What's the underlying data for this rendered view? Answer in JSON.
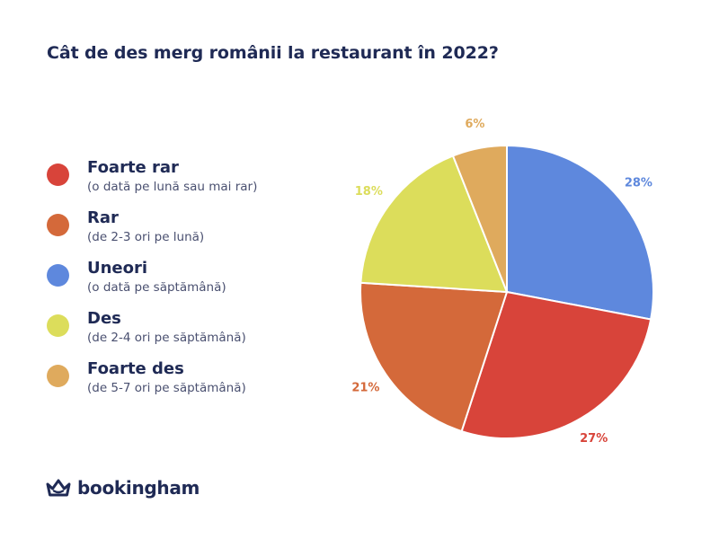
{
  "chart_data": {
    "type": "pie",
    "title": "Cât de des merg românii la restaurant în 2022?",
    "start_angle_deg": 0,
    "direction": "clockwise",
    "slices": [
      {
        "category": "Uneori",
        "description": "(o dată pe săptămână)",
        "value": 28,
        "label": "28%",
        "color": "#5e88dd"
      },
      {
        "category": "Foarte rar",
        "description": "(o dată pe lună sau mai rar)",
        "value": 27,
        "label": "27%",
        "color": "#d8443a"
      },
      {
        "category": "Rar",
        "description": "(de 2-3 ori pe lună)",
        "value": 21,
        "label": "21%",
        "color": "#d4693a"
      },
      {
        "category": "Des",
        "description": "(de 2-4 ori pe săptămână)",
        "value": 18,
        "label": "18%",
        "color": "#dcdd5b"
      },
      {
        "category": "Foarte des",
        "description": "(de 5-7 ori pe săptămână)",
        "value": 6,
        "label": "6%",
        "color": "#dfaa5d"
      }
    ],
    "legend": [
      {
        "label": "Foarte rar",
        "sublabel": "(o dată pe lună sau mai rar)",
        "color": "#d8443a"
      },
      {
        "label": "Rar",
        "sublabel": "(de 2-3 ori pe lună)",
        "color": "#d4693a"
      },
      {
        "label": "Uneori",
        "sublabel": "(o dată pe săptămână)",
        "color": "#5e88dd"
      },
      {
        "label": "Des",
        "sublabel": "(de 2-4 ori pe săptămână)",
        "color": "#dcdd5b"
      },
      {
        "label": "Foarte des",
        "sublabel": "(de 5-7 ori pe săptămână)",
        "color": "#dfaa5d"
      }
    ],
    "legend_position": "left"
  },
  "brand": {
    "name": "bookingham",
    "logo_icon": "crown-icon",
    "color": "#1f2a55"
  }
}
